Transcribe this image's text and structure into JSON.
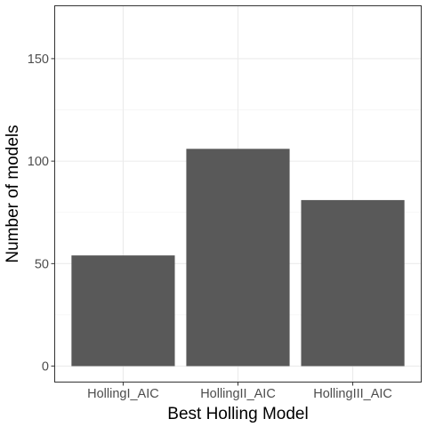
{
  "chart_data": {
    "type": "bar",
    "title": "",
    "xlabel": "Best Holling Model",
    "ylabel": "Number of models",
    "categories": [
      "HollingI_AIC",
      "HollingII_AIC",
      "HollingIII_AIC"
    ],
    "values": [
      54,
      106,
      81
    ],
    "ylim": [
      -8,
      176
    ],
    "yticks": [
      0,
      50,
      100,
      150
    ],
    "ytick_labels": [
      "0",
      "50",
      "100",
      "150"
    ],
    "bar_color": "#595959",
    "grid": true,
    "legend": "none",
    "theme": "bw"
  }
}
